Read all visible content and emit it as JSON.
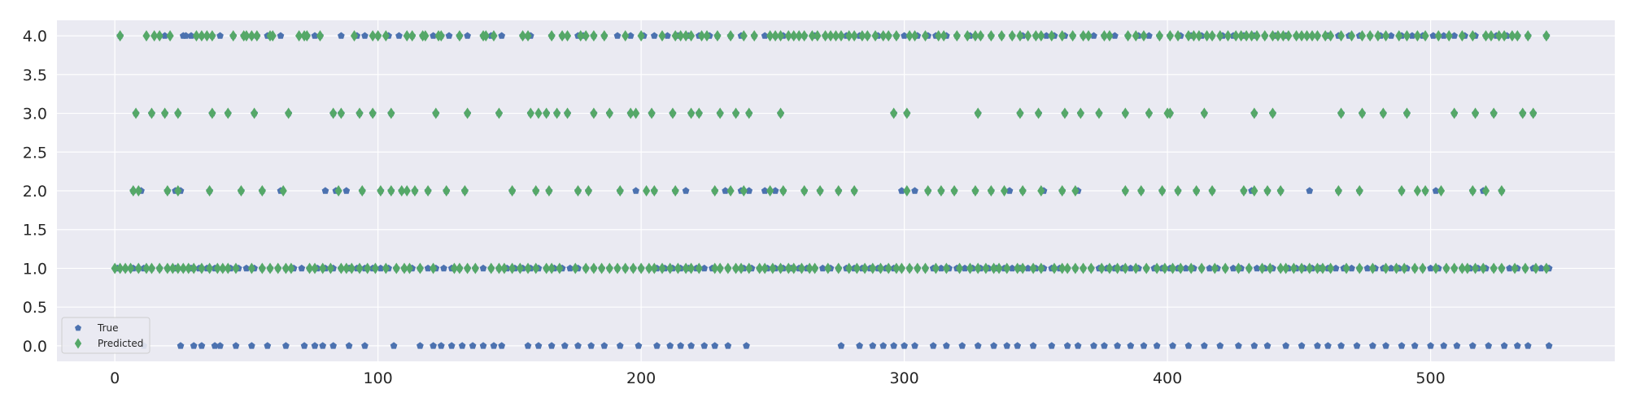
{
  "chart_data": {
    "type": "scatter",
    "title": "",
    "xlabel": "",
    "ylabel": "",
    "xlim": [
      -22,
      570
    ],
    "ylim": [
      -0.2,
      4.2
    ],
    "x_ticks": [
      0,
      100,
      200,
      300,
      400,
      500
    ],
    "y_ticks": [
      0.0,
      0.5,
      1.0,
      1.5,
      2.0,
      2.5,
      3.0,
      3.5,
      4.0
    ],
    "grid": true,
    "legend_position": "lower-left",
    "legend": [
      {
        "label": "True",
        "marker": "pentagon",
        "color": "#4C72B0"
      },
      {
        "label": "Predicted",
        "marker": "diamond",
        "color": "#55A868"
      }
    ],
    "colors": {
      "background": "#EAEAF2",
      "grid": "#FFFFFF",
      "true": "#4C72B0",
      "predicted": "#55A868"
    },
    "series": [
      {
        "name": "True",
        "marker": "pentagon",
        "color": "#4C72B0",
        "points": {
          "4.0": [
            2,
            19,
            26,
            27,
            29,
            31,
            33,
            37,
            40,
            45,
            49,
            52,
            54,
            58,
            59,
            63,
            73,
            76,
            78,
            86,
            92,
            95,
            100,
            104,
            108,
            113,
            117,
            121,
            124,
            127,
            131,
            134,
            140,
            143,
            147,
            155,
            157,
            158,
            166,
            170,
            176,
            178,
            182,
            186,
            191,
            196,
            201,
            205,
            210,
            214,
            218,
            222,
            226,
            229,
            234,
            238,
            243,
            247,
            251,
            254,
            258,
            262,
            266,
            270,
            274,
            278,
            283,
            286,
            290,
            294,
            297,
            300,
            305,
            309,
            312,
            316,
            320,
            325,
            329,
            333,
            337,
            341,
            345,
            350,
            354,
            357,
            361,
            364,
            368,
            372,
            376,
            380,
            385,
            389,
            393,
            397,
            401,
            405,
            409,
            413,
            417,
            421,
            425,
            429,
            433,
            437,
            441,
            445,
            449,
            453,
            457,
            461,
            465,
            469,
            473,
            477,
            481,
            485,
            489,
            493,
            497,
            501,
            505,
            509,
            513,
            517,
            521,
            525,
            529,
            533,
            537,
            544
          ],
          "3.0": [
            8,
            14,
            19,
            24,
            37,
            43,
            53,
            66,
            83,
            86,
            93,
            98,
            105,
            122,
            134,
            146,
            158,
            164,
            168,
            172,
            182,
            188,
            196,
            204,
            212,
            219,
            222,
            230,
            236,
            241,
            253,
            296,
            301,
            328,
            344,
            351,
            361,
            367,
            374,
            384,
            393,
            401,
            414,
            433,
            440,
            466,
            474,
            482,
            491,
            509,
            517,
            524,
            535,
            539
          ],
          "2.0": [
            7,
            10,
            20,
            23,
            25,
            36,
            48,
            56,
            63,
            80,
            84,
            88,
            94,
            101,
            105,
            109,
            114,
            119,
            126,
            133,
            151,
            160,
            165,
            176,
            180,
            192,
            198,
            205,
            213,
            217,
            228,
            232,
            238,
            241,
            247,
            251,
            254,
            262,
            268,
            275,
            281,
            299,
            304,
            309,
            314,
            319,
            327,
            333,
            340,
            345,
            353,
            360,
            366,
            384,
            390,
            398,
            404,
            411,
            417,
            429,
            432,
            438,
            443,
            454,
            465,
            473,
            489,
            498,
            502,
            516,
            520,
            527
          ],
          "1.0": [
            1,
            4,
            7,
            9,
            11,
            14,
            17,
            20,
            23,
            26,
            29,
            32,
            35,
            38,
            41,
            44,
            47,
            50,
            53,
            56,
            59,
            62,
            65,
            68,
            71,
            74,
            77,
            80,
            83,
            86,
            89,
            92,
            95,
            98,
            101,
            104,
            107,
            110,
            113,
            116,
            119,
            122,
            125,
            128,
            131,
            134,
            137,
            140,
            143,
            146,
            149,
            152,
            155,
            158,
            161,
            164,
            167,
            170,
            173,
            176,
            179,
            182,
            185,
            188,
            191,
            194,
            197,
            200,
            203,
            206,
            209,
            212,
            215,
            218,
            221,
            224,
            227,
            230,
            233,
            236,
            239,
            242,
            245,
            248,
            251,
            254,
            257,
            260,
            263,
            266,
            269,
            272,
            275,
            278,
            281,
            284,
            287,
            290,
            293,
            296,
            299,
            302,
            305,
            308,
            311,
            314,
            317,
            320,
            323,
            326,
            329,
            332,
            335,
            338,
            341,
            344,
            347,
            350,
            353,
            356,
            359,
            362,
            365,
            368,
            371,
            374,
            377,
            380,
            383,
            386,
            389,
            392,
            395,
            398,
            401,
            404,
            407,
            410,
            413,
            416,
            419,
            422,
            425,
            428,
            431,
            434,
            437,
            440,
            443,
            446,
            449,
            452,
            455,
            458,
            461,
            464,
            467,
            470,
            473,
            476,
            479,
            482,
            485,
            488,
            491,
            494,
            497,
            500,
            503,
            506,
            509,
            512,
            515,
            518,
            521,
            524,
            527,
            530,
            533,
            536,
            539,
            542,
            545
          ],
          "0.0": [
            11,
            25,
            30,
            33,
            38,
            40,
            46,
            52,
            58,
            65,
            72,
            76,
            79,
            83,
            89,
            95,
            106,
            116,
            121,
            124,
            128,
            132,
            136,
            140,
            144,
            147,
            157,
            161,
            166,
            171,
            176,
            181,
            186,
            192,
            199,
            206,
            211,
            215,
            219,
            224,
            228,
            233,
            240,
            276,
            283,
            288,
            292,
            296,
            300,
            304,
            311,
            316,
            322,
            328,
            334,
            339,
            343,
            349,
            356,
            362,
            366,
            372,
            376,
            381,
            386,
            391,
            396,
            402,
            408,
            414,
            420,
            427,
            433,
            438,
            445,
            451,
            457,
            461,
            466,
            472,
            478,
            483,
            489,
            494,
            500,
            505,
            510,
            516,
            522,
            528,
            533,
            537,
            545
          ]
        }
      },
      {
        "name": "Predicted",
        "marker": "diamond",
        "color": "#55A868",
        "points": {
          "4.0": [
            2,
            12,
            15,
            17,
            21,
            31,
            33,
            35,
            37,
            45,
            49,
            50,
            52,
            54,
            59,
            60,
            70,
            72,
            73,
            78,
            91,
            98,
            100,
            103,
            111,
            113,
            117,
            118,
            123,
            124,
            131,
            140,
            141,
            144,
            155,
            157,
            166,
            170,
            172,
            177,
            179,
            182,
            186,
            194,
            200,
            208,
            213,
            215,
            217,
            219,
            223,
            225,
            229,
            234,
            239,
            243,
            249,
            251,
            253,
            256,
            258,
            260,
            262,
            265,
            267,
            270,
            272,
            274,
            276,
            279,
            281,
            284,
            286,
            289,
            292,
            294,
            297,
            302,
            304,
            308,
            313,
            315,
            320,
            324,
            327,
            329,
            333,
            337,
            341,
            344,
            347,
            350,
            352,
            356,
            360,
            364,
            368,
            370,
            376,
            378,
            385,
            388,
            391,
            397,
            401,
            404,
            408,
            410,
            412,
            415,
            417,
            420,
            423,
            426,
            428,
            430,
            432,
            434,
            437,
            440,
            442,
            444,
            446,
            449,
            451,
            453,
            455,
            457,
            460,
            462,
            466,
            470,
            474,
            477,
            480,
            483,
            488,
            491,
            495,
            498,
            503,
            507,
            512,
            516,
            521,
            523,
            526,
            528,
            531,
            533,
            537,
            544
          ],
          "3.0": [
            8,
            14,
            19,
            24,
            37,
            43,
            53,
            66,
            83,
            86,
            93,
            98,
            105,
            122,
            134,
            146,
            158,
            161,
            164,
            168,
            172,
            182,
            188,
            196,
            198,
            204,
            212,
            219,
            222,
            230,
            236,
            241,
            253,
            296,
            301,
            328,
            344,
            351,
            361,
            367,
            374,
            384,
            393,
            400,
            401,
            414,
            433,
            440,
            466,
            474,
            482,
            491,
            509,
            517,
            524,
            535,
            539
          ],
          "2.0": [
            7,
            9,
            20,
            24,
            36,
            48,
            56,
            64,
            85,
            94,
            101,
            105,
            109,
            111,
            114,
            119,
            126,
            133,
            151,
            160,
            165,
            176,
            180,
            192,
            202,
            205,
            213,
            228,
            234,
            239,
            249,
            254,
            262,
            268,
            275,
            281,
            301,
            309,
            314,
            319,
            327,
            333,
            338,
            345,
            352,
            360,
            365,
            384,
            390,
            398,
            404,
            411,
            417,
            429,
            433,
            438,
            443,
            465,
            473,
            489,
            495,
            498,
            504,
            516,
            521,
            527
          ],
          "1.0": [
            0,
            2,
            4,
            6,
            9,
            12,
            14,
            17,
            20,
            22,
            24,
            26,
            28,
            30,
            33,
            36,
            39,
            41,
            43,
            46,
            52,
            56,
            59,
            62,
            65,
            67,
            74,
            76,
            79,
            82,
            86,
            88,
            90,
            93,
            96,
            99,
            103,
            107,
            110,
            112,
            116,
            121,
            129,
            131,
            134,
            137,
            143,
            146,
            148,
            151,
            154,
            157,
            160,
            164,
            166,
            169,
            175,
            179,
            182,
            185,
            188,
            191,
            194,
            197,
            200,
            203,
            205,
            208,
            211,
            214,
            217,
            219,
            222,
            228,
            230,
            233,
            236,
            238,
            241,
            245,
            247,
            250,
            253,
            256,
            258,
            261,
            264,
            266,
            271,
            275,
            279,
            282,
            285,
            288,
            291,
            294,
            297,
            299,
            302,
            305,
            308,
            312,
            316,
            321,
            325,
            328,
            331,
            334,
            336,
            339,
            343,
            345,
            349,
            352,
            357,
            360,
            362,
            365,
            368,
            371,
            375,
            378,
            381,
            384,
            388,
            392,
            396,
            399,
            402,
            405,
            409,
            413,
            418,
            422,
            427,
            431,
            436,
            439,
            443,
            445,
            448,
            451,
            454,
            457,
            459,
            462,
            468,
            473,
            478,
            483,
            487,
            490,
            494,
            497,
            502,
            506,
            509,
            512,
            514,
            517,
            520,
            524,
            527,
            532,
            536,
            540,
            544
          ]
        }
      }
    ]
  }
}
